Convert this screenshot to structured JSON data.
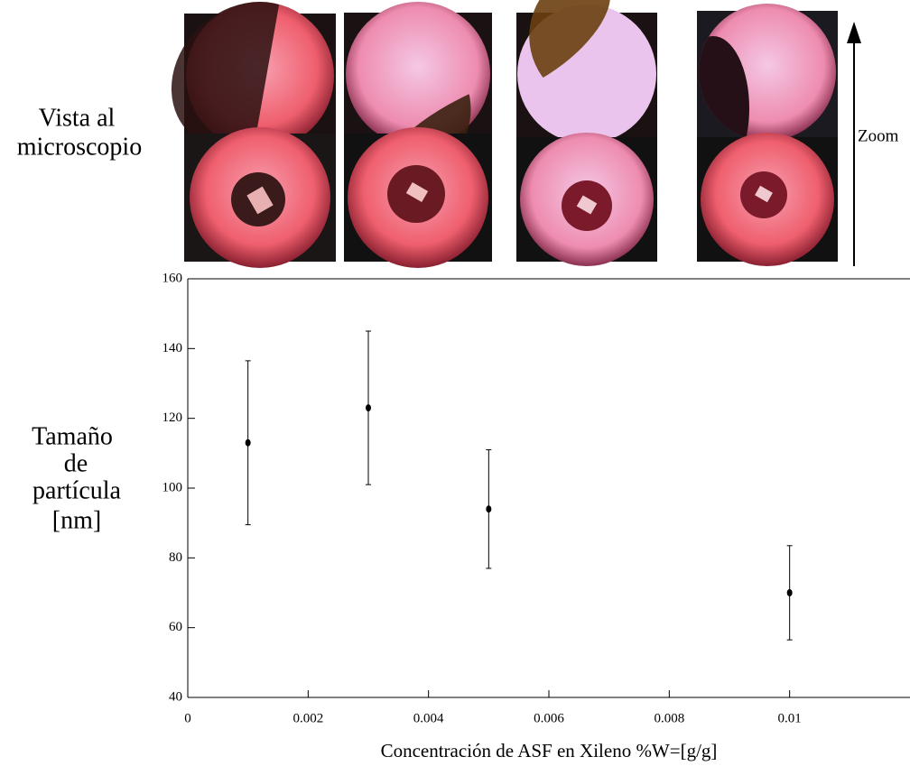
{
  "chart_data": {
    "type": "scatter",
    "side_label": [
      "Vista al",
      "microscopio"
    ],
    "zoom_label": "Zoom",
    "ylabel": [
      "Tamaño",
      "de",
      "partícula",
      "[nm]"
    ],
    "xlabel": "Concentración de ASF en Xileno %W=[g/g]",
    "x": [
      0.001,
      0.003,
      0.005,
      0.01
    ],
    "values": [
      113,
      123,
      94,
      70
    ],
    "errors": [
      23.5,
      22,
      17,
      13.5
    ],
    "color": "#000000",
    "xlim": [
      0,
      0.012
    ],
    "xticks": [
      0,
      0.002,
      0.004,
      0.006,
      0.008,
      0.01
    ],
    "ylim": [
      40,
      160
    ],
    "yticks": [
      40,
      60,
      80,
      100,
      120,
      140,
      160
    ]
  }
}
